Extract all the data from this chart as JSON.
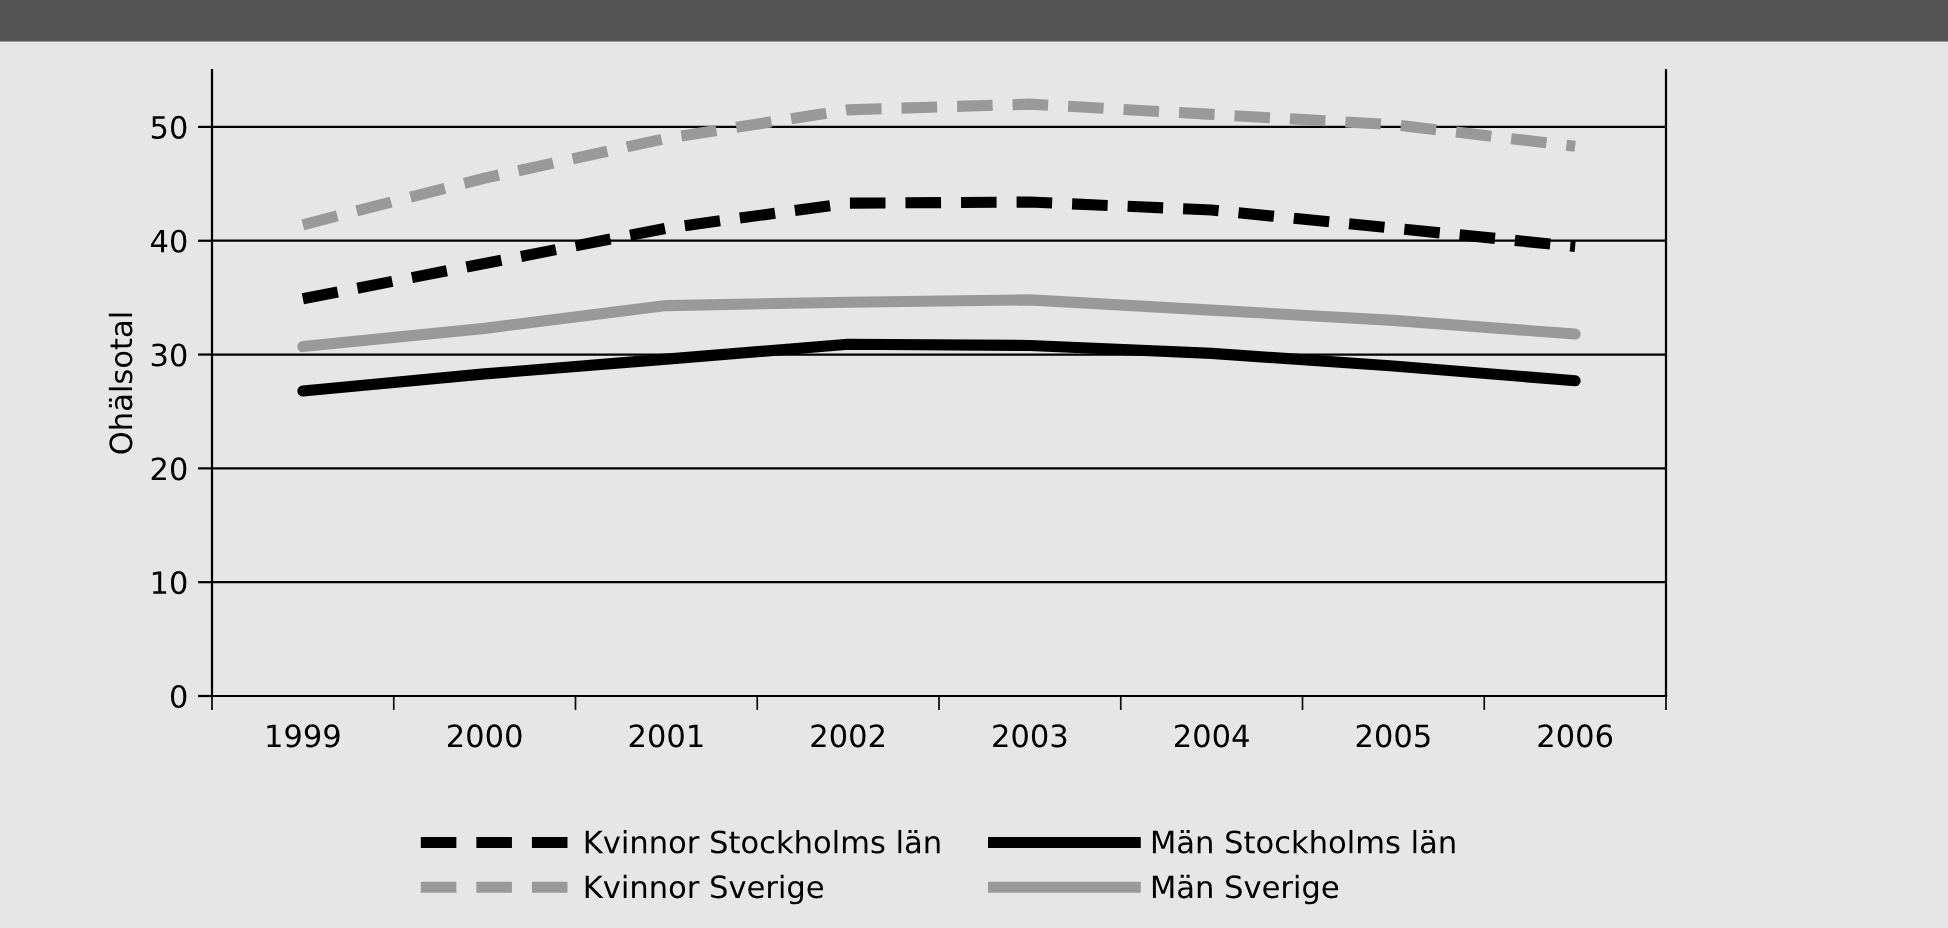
{
  "chart_data": {
    "type": "line",
    "ylabel": "Ohälsotal",
    "categories": [
      "1999",
      "2000",
      "2001",
      "2002",
      "2003",
      "2004",
      "2005",
      "2006"
    ],
    "series": [
      {
        "name": "Kvinnor Stockholms län",
        "color": "#000000",
        "line_style": "dashed",
        "values": [
          34.9,
          38.0,
          41.1,
          43.3,
          43.4,
          42.7,
          41.1,
          39.5
        ]
      },
      {
        "name": "Män Stockholms län",
        "color": "#000000",
        "line_style": "solid",
        "values": [
          26.8,
          28.3,
          29.6,
          30.9,
          30.8,
          30.1,
          29.0,
          27.7
        ]
      },
      {
        "name": "Kvinnor Sverige",
        "color": "#999999",
        "line_style": "dashed",
        "values": [
          41.4,
          45.5,
          49.0,
          51.5,
          52.0,
          51.1,
          50.2,
          48.3
        ]
      },
      {
        "name": "Män Sverige",
        "color": "#999999",
        "line_style": "solid",
        "values": [
          30.7,
          32.3,
          34.3,
          34.6,
          34.8,
          33.9,
          33.0,
          31.8
        ]
      }
    ],
    "ylim": [
      0,
      55
    ],
    "yticks": [
      0,
      10,
      20,
      30,
      40,
      50
    ],
    "grid": "y",
    "legend": "bottom",
    "marker": "none"
  }
}
